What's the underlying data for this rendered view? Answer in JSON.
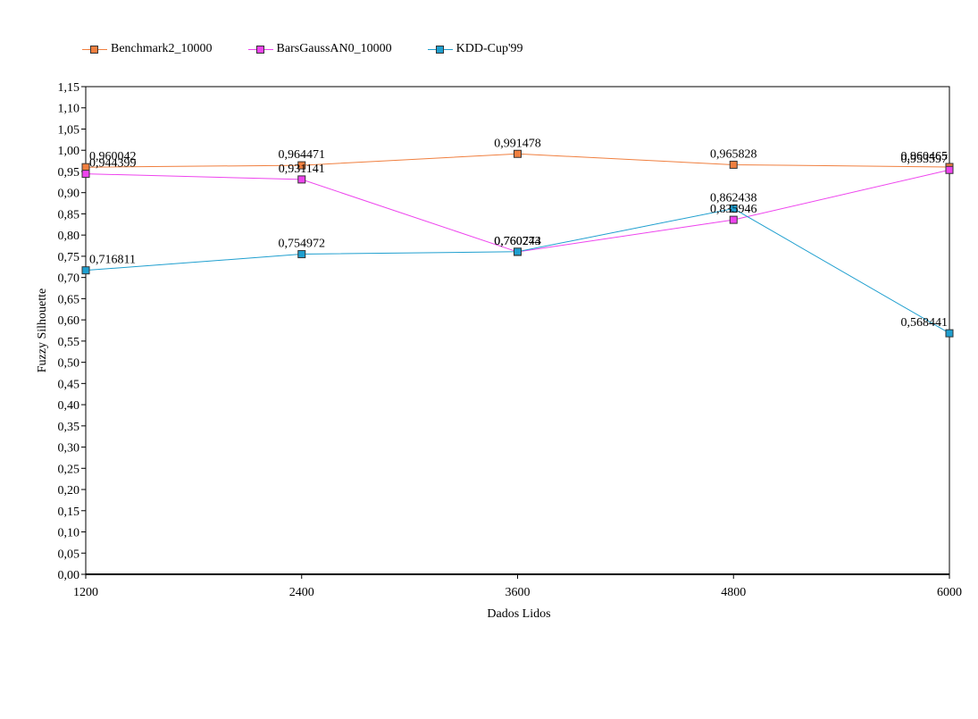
{
  "chart_data": {
    "type": "line",
    "xlabel": "Dados Lidos",
    "ylabel": "Fuzzy Silhouette",
    "x": [
      "1200",
      "2400",
      "3600",
      "4800",
      "6000"
    ],
    "ylim": [
      0,
      1.15
    ],
    "ystep": 0.05,
    "yticks": [
      "0,00",
      "0,05",
      "0,10",
      "0,15",
      "0,20",
      "0,25",
      "0,30",
      "0,35",
      "0,40",
      "0,45",
      "0,50",
      "0,55",
      "0,60",
      "0,65",
      "0,70",
      "0,75",
      "0,80",
      "0,85",
      "0,90",
      "0,95",
      "1,00",
      "1,05",
      "1,10",
      "1,15"
    ],
    "grid": false,
    "legend_position": "top-left",
    "series": [
      {
        "name": "Benchmark2_10000",
        "color": "#f07f3f",
        "values": [
          0.960042,
          0.964471,
          0.991478,
          0.965828,
          0.960465
        ],
        "labels": [
          "0,960042",
          "0,964471",
          "0,991478",
          "0,965828",
          "0,960465"
        ]
      },
      {
        "name": "BarsGaussAN0_10000",
        "color": "#ee44ee",
        "values": [
          0.944399,
          0.931141,
          0.760244,
          0.835946,
          0.953597
        ],
        "labels": [
          "0,944399",
          "0,931141",
          "0,760244",
          "0,835946",
          "0,953597"
        ]
      },
      {
        "name": "KDD-Cup'99",
        "color": "#1f9fcf",
        "values": [
          0.716811,
          0.754972,
          0.760773,
          0.862438,
          0.568441
        ],
        "labels": [
          "0,716811",
          "0,754972",
          "0,760773",
          "0,862438",
          "0,568441"
        ]
      }
    ]
  }
}
